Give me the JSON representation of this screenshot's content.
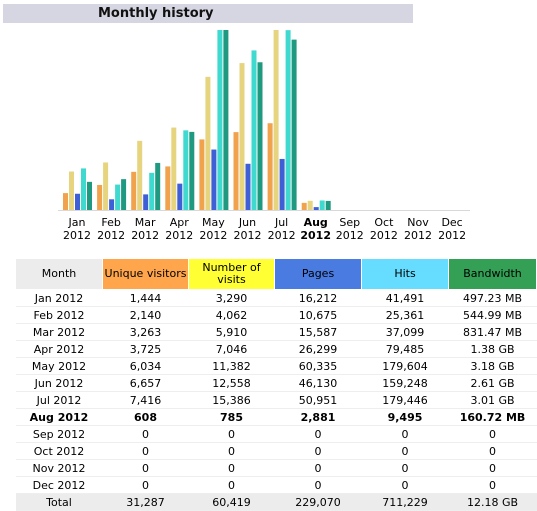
{
  "chart_data": {
    "type": "bar",
    "title": "Monthly history",
    "categories": [
      "Jan 2012",
      "Feb 2012",
      "Mar 2012",
      "Apr 2012",
      "May 2012",
      "Jun 2012",
      "Jul 2012",
      "Aug 2012",
      "Sep 2012",
      "Oct 2012",
      "Nov 2012",
      "Dec 2012"
    ],
    "current_index": 7,
    "series": [
      {
        "name": "Unique visitors",
        "color": "#f0a24c",
        "values": [
          1444,
          2140,
          3263,
          3725,
          6034,
          6657,
          7416,
          608,
          0,
          0,
          0,
          0
        ]
      },
      {
        "name": "Number of visits",
        "color": "#e6d47e",
        "values": [
          3290,
          4062,
          5910,
          7046,
          11382,
          12558,
          15386,
          785,
          0,
          0,
          0,
          0
        ]
      },
      {
        "name": "Pages",
        "color": "#3f5fd6",
        "values": [
          16212,
          10675,
          15587,
          26299,
          60335,
          46130,
          50951,
          2881,
          0,
          0,
          0,
          0
        ]
      },
      {
        "name": "Hits",
        "color": "#3fd9cf",
        "values": [
          41491,
          25361,
          37099,
          79485,
          179604,
          159248,
          179446,
          9495,
          0,
          0,
          0,
          0
        ]
      },
      {
        "name": "Bandwidth",
        "color": "#1f9a80",
        "values": [
          497.23,
          544.99,
          831.47,
          1380,
          3180,
          2610,
          3010,
          160.72,
          0,
          0,
          0,
          0
        ]
      }
    ]
  },
  "table": {
    "header": [
      "Month",
      "Unique visitors",
      "Number of visits",
      "Pages",
      "Hits",
      "Bandwidth"
    ],
    "header_colors": [
      "#ececec",
      "#ffa64d",
      "#ffff33",
      "#4a7be0",
      "#66ddff",
      "#33a056"
    ],
    "rows": [
      [
        "Jan 2012",
        "1,444",
        "3,290",
        "16,212",
        "41,491",
        "497.23 MB"
      ],
      [
        "Feb 2012",
        "2,140",
        "4,062",
        "10,675",
        "25,361",
        "544.99 MB"
      ],
      [
        "Mar 2012",
        "3,263",
        "5,910",
        "15,587",
        "37,099",
        "831.47 MB"
      ],
      [
        "Apr 2012",
        "3,725",
        "7,046",
        "26,299",
        "79,485",
        "1.38 GB"
      ],
      [
        "May 2012",
        "6,034",
        "11,382",
        "60,335",
        "179,604",
        "3.18 GB"
      ],
      [
        "Jun 2012",
        "6,657",
        "12,558",
        "46,130",
        "159,248",
        "2.61 GB"
      ],
      [
        "Jul 2012",
        "7,416",
        "15,386",
        "50,951",
        "179,446",
        "3.01 GB"
      ],
      [
        "Aug 2012",
        "608",
        "785",
        "2,881",
        "9,495",
        "160.72 MB"
      ],
      [
        "Sep 2012",
        "0",
        "0",
        "0",
        "0",
        "0"
      ],
      [
        "Oct 2012",
        "0",
        "0",
        "0",
        "0",
        "0"
      ],
      [
        "Nov 2012",
        "0",
        "0",
        "0",
        "0",
        "0"
      ],
      [
        "Dec 2012",
        "0",
        "0",
        "0",
        "0",
        "0"
      ]
    ],
    "total": [
      "Total",
      "31,287",
      "60,419",
      "229,070",
      "711,229",
      "12.18 GB"
    ]
  }
}
